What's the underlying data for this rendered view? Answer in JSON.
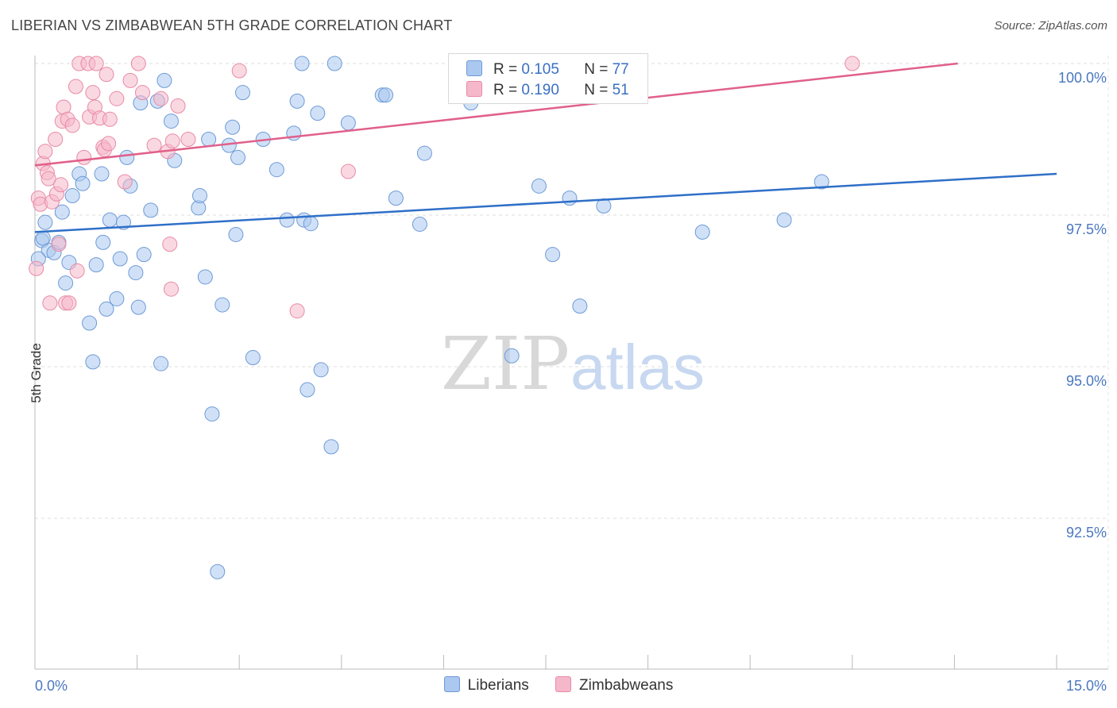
{
  "header": {
    "title": "LIBERIAN VS ZIMBABWEAN 5TH GRADE CORRELATION CHART",
    "source": "Source: ZipAtlas.com"
  },
  "watermark": {
    "zip": "ZIP",
    "atlas": "atlas"
  },
  "legend_top": {
    "rows": [
      {
        "r_label": "R =",
        "r_value": "0.105",
        "n_label": "N =",
        "n_value": "77",
        "color": "#aac8f0"
      },
      {
        "r_label": "R =",
        "r_value": "0.190",
        "n_label": "N =",
        "n_value": "51",
        "color": "#f5b8cb"
      }
    ]
  },
  "chart_data": {
    "type": "scatter",
    "title": "LIBERIAN VS ZIMBABWEAN 5TH GRADE CORRELATION CHART",
    "xlabel": "",
    "ylabel": "5th Grade",
    "xlim": [
      0,
      15
    ],
    "ylim": [
      90.5,
      100.5
    ],
    "x_tick_labels": [
      "0.0%",
      "15.0%"
    ],
    "y_ticks": [
      92.5,
      95.0,
      97.5,
      100.0
    ],
    "y_tick_labels": [
      "92.5%",
      "95.0%",
      "97.5%",
      "100.0%"
    ],
    "grid": true,
    "legend_position": "bottom",
    "series": [
      {
        "name": "Liberians",
        "color": "#aac8f0",
        "stroke": "#6e9ad6",
        "trend": [
          [
            0,
            97.22
          ],
          [
            15,
            98.18
          ]
        ],
        "trend_color": "#2f6fc8",
        "points": [
          [
            0.1,
            97.08
          ],
          [
            0.15,
            97.38
          ],
          [
            0.2,
            96.92
          ],
          [
            0.28,
            96.88
          ],
          [
            0.35,
            97.05
          ],
          [
            0.4,
            97.55
          ],
          [
            0.45,
            96.38
          ],
          [
            0.5,
            96.72
          ],
          [
            0.55,
            97.82
          ],
          [
            0.65,
            98.18
          ],
          [
            0.7,
            98.02
          ],
          [
            0.8,
            95.72
          ],
          [
            0.85,
            95.08
          ],
          [
            0.9,
            96.68
          ],
          [
            0.98,
            98.18
          ],
          [
            1.0,
            97.05
          ],
          [
            1.05,
            95.95
          ],
          [
            1.1,
            97.42
          ],
          [
            1.2,
            96.12
          ],
          [
            1.25,
            96.78
          ],
          [
            1.3,
            97.38
          ],
          [
            1.35,
            98.45
          ],
          [
            1.4,
            97.98
          ],
          [
            1.48,
            96.55
          ],
          [
            1.52,
            95.98
          ],
          [
            1.55,
            99.35
          ],
          [
            1.6,
            96.85
          ],
          [
            1.7,
            97.58
          ],
          [
            1.8,
            99.38
          ],
          [
            1.85,
            95.05
          ],
          [
            1.9,
            99.72
          ],
          [
            2.0,
            99.05
          ],
          [
            2.05,
            98.4
          ],
          [
            2.4,
            97.62
          ],
          [
            2.42,
            97.82
          ],
          [
            2.5,
            96.48
          ],
          [
            2.55,
            98.75
          ],
          [
            2.6,
            94.22
          ],
          [
            2.68,
            91.62
          ],
          [
            2.75,
            96.02
          ],
          [
            2.85,
            98.65
          ],
          [
            2.9,
            98.95
          ],
          [
            2.95,
            97.18
          ],
          [
            2.98,
            98.45
          ],
          [
            3.05,
            99.52
          ],
          [
            3.2,
            95.15
          ],
          [
            3.35,
            98.75
          ],
          [
            3.55,
            98.25
          ],
          [
            3.7,
            97.42
          ],
          [
            3.8,
            98.85
          ],
          [
            3.85,
            99.38
          ],
          [
            3.92,
            100.0
          ],
          [
            3.95,
            97.42
          ],
          [
            4.0,
            94.62
          ],
          [
            4.05,
            97.36
          ],
          [
            4.15,
            99.18
          ],
          [
            4.2,
            94.95
          ],
          [
            4.35,
            93.68
          ],
          [
            4.4,
            100.0
          ],
          [
            4.6,
            99.02
          ],
          [
            5.1,
            99.48
          ],
          [
            5.15,
            99.48
          ],
          [
            5.3,
            97.78
          ],
          [
            5.65,
            97.35
          ],
          [
            5.72,
            98.52
          ],
          [
            6.4,
            99.35
          ],
          [
            7.0,
            95.18
          ],
          [
            7.4,
            97.98
          ],
          [
            7.6,
            96.85
          ],
          [
            7.85,
            97.78
          ],
          [
            8.0,
            96.0
          ],
          [
            8.35,
            97.65
          ],
          [
            9.8,
            97.22
          ],
          [
            11.0,
            97.42
          ],
          [
            11.55,
            98.05
          ],
          [
            0.05,
            96.78
          ],
          [
            0.12,
            97.12
          ]
        ]
      },
      {
        "name": "Zimbabweans",
        "color": "#f5b8cb",
        "stroke": "#e88aa6",
        "trend": [
          [
            0,
            98.32
          ],
          [
            15,
            100.18
          ]
        ],
        "trend_color": "#e0608a",
        "points": [
          [
            0.02,
            96.62
          ],
          [
            0.05,
            97.78
          ],
          [
            0.08,
            97.68
          ],
          [
            0.12,
            98.35
          ],
          [
            0.15,
            98.55
          ],
          [
            0.18,
            98.2
          ],
          [
            0.2,
            98.1
          ],
          [
            0.22,
            96.05
          ],
          [
            0.25,
            97.72
          ],
          [
            0.3,
            98.75
          ],
          [
            0.32,
            97.85
          ],
          [
            0.35,
            97.02
          ],
          [
            0.38,
            98.0
          ],
          [
            0.4,
            99.05
          ],
          [
            0.42,
            99.28
          ],
          [
            0.45,
            96.05
          ],
          [
            0.48,
            99.08
          ],
          [
            0.5,
            96.05
          ],
          [
            0.55,
            98.98
          ],
          [
            0.6,
            99.62
          ],
          [
            0.62,
            96.58
          ],
          [
            0.65,
            100.0
          ],
          [
            0.72,
            98.45
          ],
          [
            0.78,
            100.0
          ],
          [
            0.8,
            99.12
          ],
          [
            0.85,
            99.52
          ],
          [
            0.88,
            99.28
          ],
          [
            0.9,
            100.0
          ],
          [
            0.95,
            99.1
          ],
          [
            1.0,
            98.62
          ],
          [
            1.02,
            98.58
          ],
          [
            1.05,
            99.82
          ],
          [
            1.08,
            98.68
          ],
          [
            1.1,
            99.08
          ],
          [
            1.2,
            99.42
          ],
          [
            1.32,
            98.05
          ],
          [
            1.4,
            99.72
          ],
          [
            1.52,
            100.0
          ],
          [
            1.58,
            99.52
          ],
          [
            1.75,
            98.65
          ],
          [
            1.85,
            99.42
          ],
          [
            1.95,
            98.55
          ],
          [
            1.98,
            97.02
          ],
          [
            2.0,
            96.28
          ],
          [
            2.02,
            98.72
          ],
          [
            2.1,
            99.3
          ],
          [
            2.25,
            98.75
          ],
          [
            3.0,
            99.88
          ],
          [
            3.85,
            95.92
          ],
          [
            4.6,
            98.22
          ],
          [
            12.0,
            100.0
          ]
        ]
      }
    ]
  }
}
